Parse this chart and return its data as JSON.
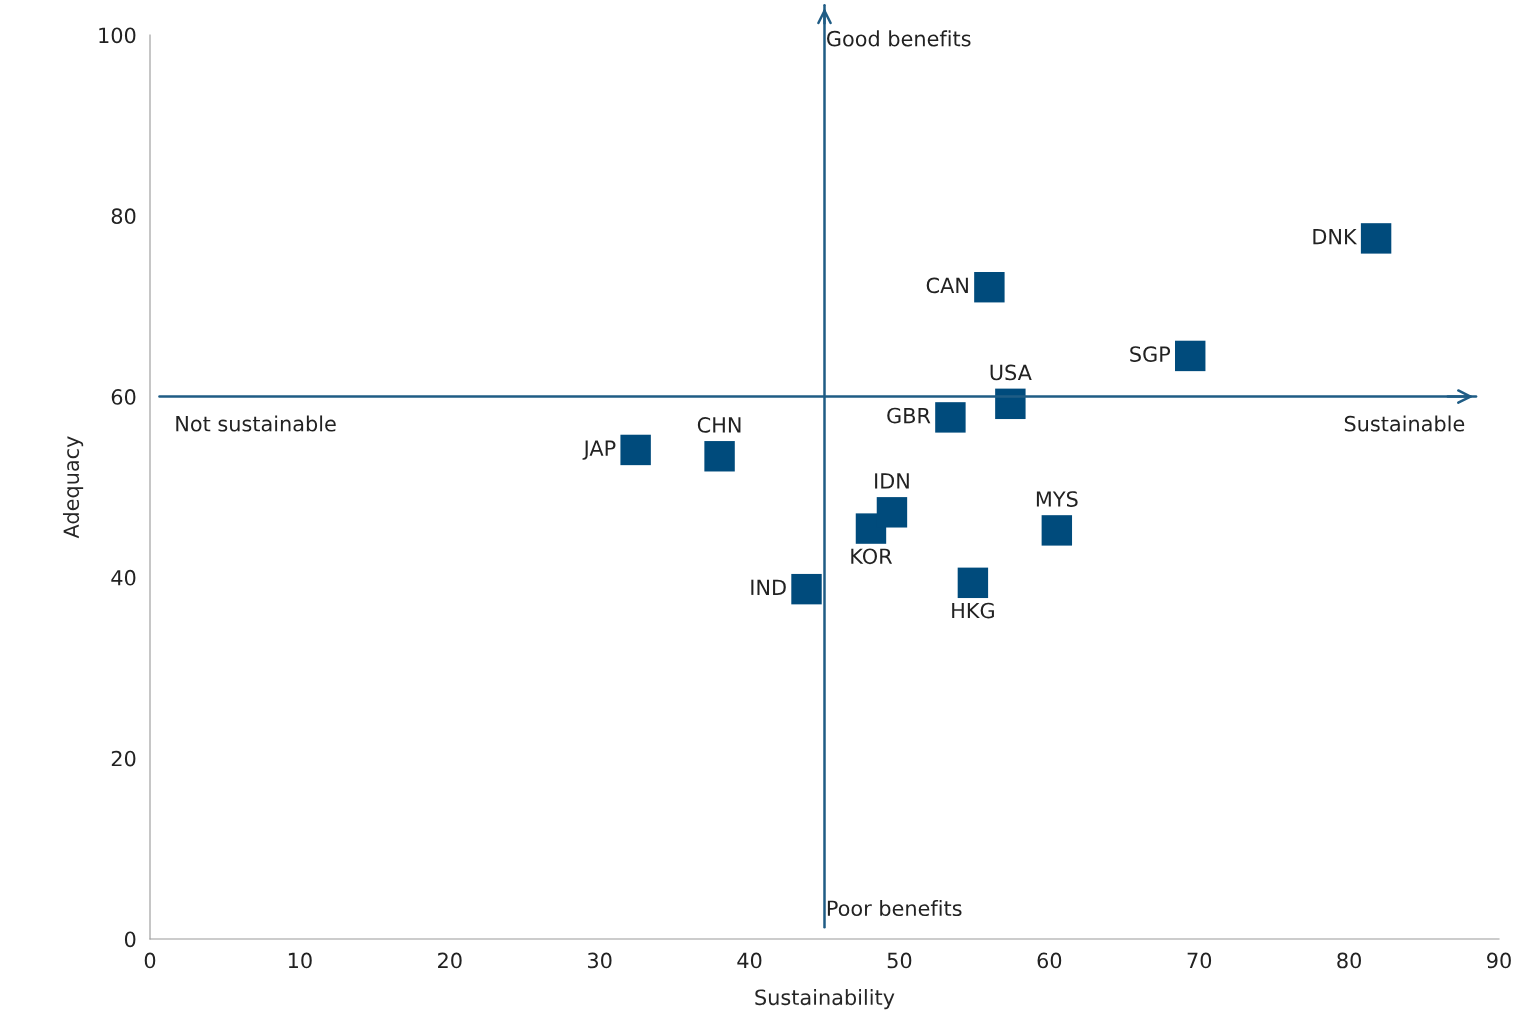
{
  "chart_data": {
    "type": "scatter",
    "xlabel": "Sustainability",
    "ylabel": "Adequacy",
    "xlim": [
      0,
      90
    ],
    "xticks": [
      0,
      10,
      20,
      30,
      40,
      50,
      60,
      70,
      80,
      90
    ],
    "ylim": [
      0,
      100
    ],
    "yticks": [
      0,
      20,
      40,
      60,
      80,
      100
    ],
    "grid": false,
    "legend": false,
    "marker": "square",
    "series": [
      {
        "name": "JAP",
        "color": "#004b7c",
        "x": [
          32.4
        ],
        "values": [
          54.1
        ]
      },
      {
        "name": "CHN",
        "color": "#004b7c",
        "x": [
          38.0
        ],
        "values": [
          53.4
        ]
      },
      {
        "name": "IND",
        "color": "#004b7c",
        "x": [
          43.8
        ],
        "values": [
          38.7
        ]
      },
      {
        "name": "KOR",
        "color": "#004b7c",
        "x": [
          48.1
        ],
        "values": [
          45.4
        ]
      },
      {
        "name": "IDN",
        "color": "#004b7c",
        "x": [
          49.5
        ],
        "values": [
          47.2
        ]
      },
      {
        "name": "GBR",
        "color": "#004b7c",
        "x": [
          53.4
        ],
        "values": [
          57.7
        ]
      },
      {
        "name": "USA",
        "color": "#004b7c",
        "x": [
          57.4
        ],
        "values": [
          59.2
        ]
      },
      {
        "name": "HKG",
        "color": "#004b7c",
        "x": [
          54.9
        ],
        "values": [
          39.4
        ]
      },
      {
        "name": "MYS",
        "color": "#004b7c",
        "x": [
          60.5
        ],
        "values": [
          45.2
        ]
      },
      {
        "name": "CAN",
        "color": "#004b7c",
        "x": [
          56.0
        ],
        "values": [
          72.1
        ]
      },
      {
        "name": "SGP",
        "color": "#004b7c",
        "x": [
          69.4
        ],
        "values": [
          64.5
        ]
      },
      {
        "name": "DNK",
        "color": "#004b7c",
        "x": [
          81.8
        ],
        "values": [
          77.5
        ]
      }
    ],
    "ref_lines": [
      {
        "axis": "x",
        "value": 45,
        "color": "#1f5c85"
      },
      {
        "axis": "y",
        "value": 60,
        "color": "#1f5c85"
      }
    ],
    "annotations": [
      "Good benefits",
      "Poor benefits",
      "Not sustainable",
      "Sustainable"
    ]
  }
}
